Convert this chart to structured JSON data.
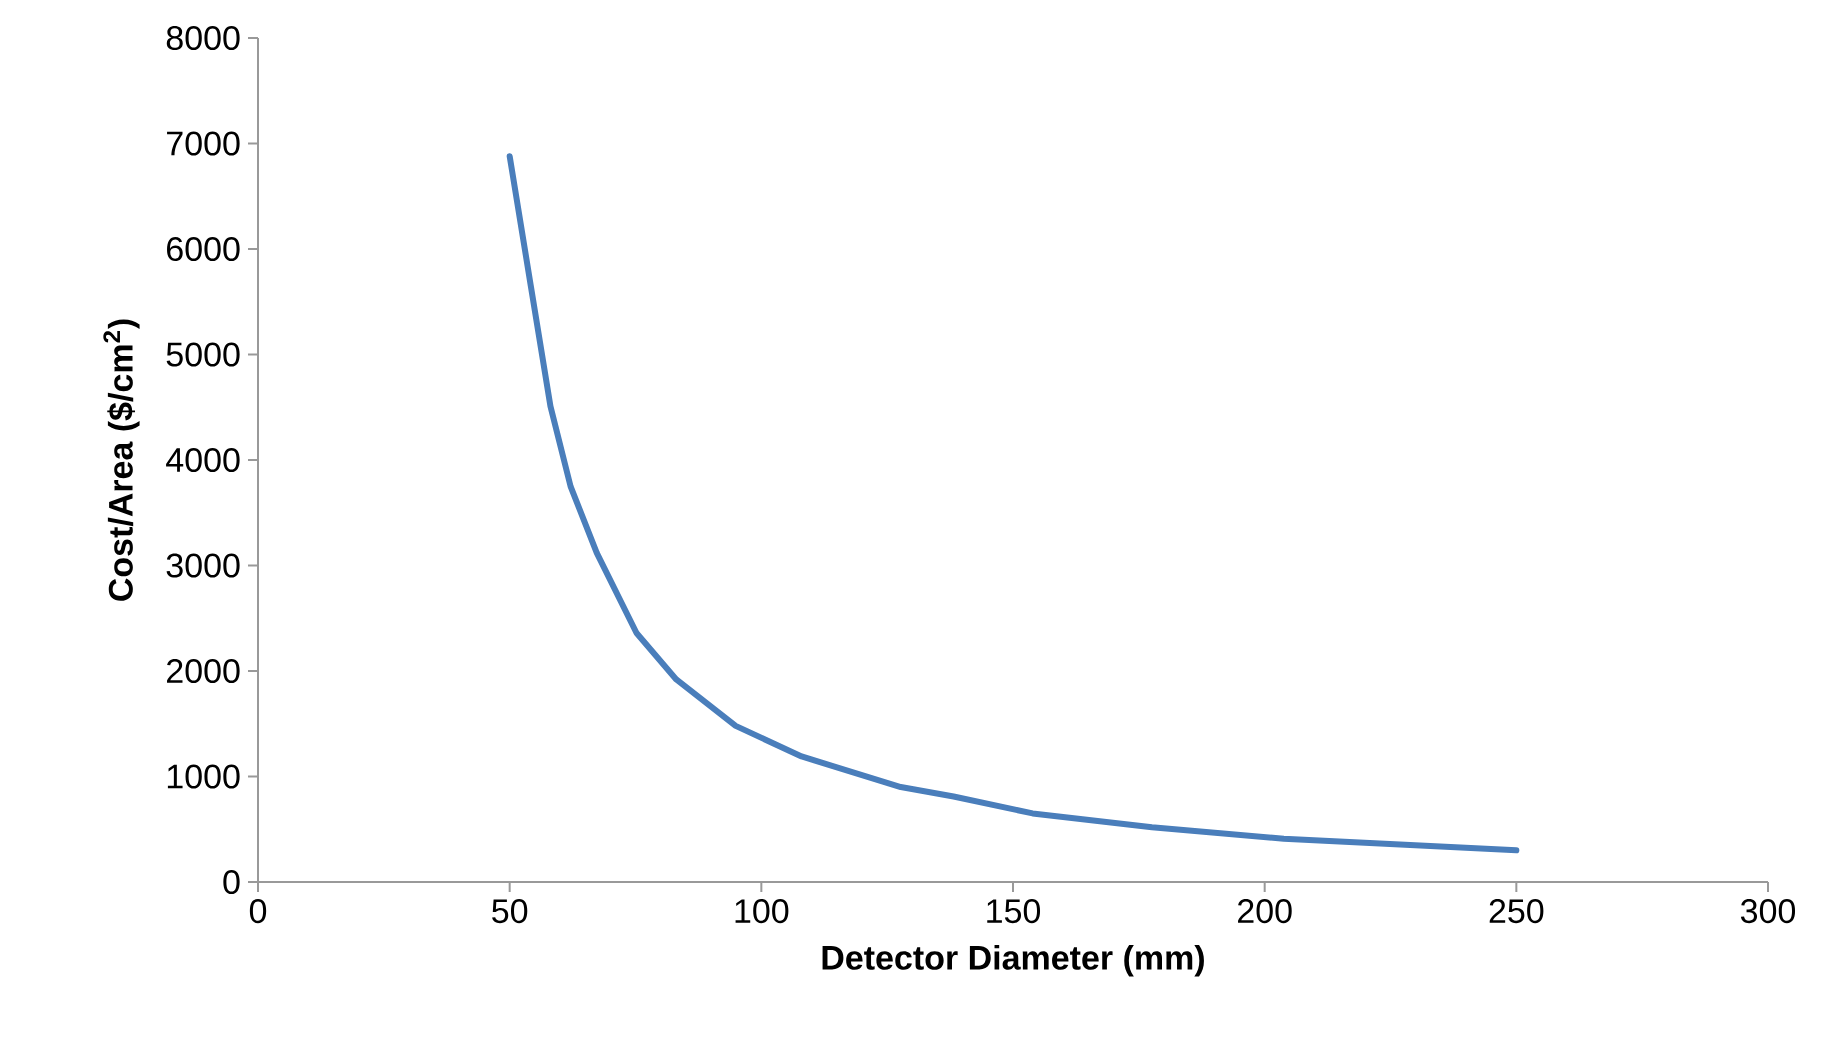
{
  "chart_data": {
    "type": "line",
    "xlabel": "Detector Diameter (mm)",
    "ylabel": "Cost/Area ($/cm$^{2}$)",
    "series": [
      {
        "color": "#4a7ebb",
        "x": [
          50,
          54.2,
          58.1,
          62.1,
          67.3,
          75.2,
          83.1,
          94.9,
          108,
          127.7,
          138.2,
          153.9,
          177.6,
          203.8,
          250
        ],
        "values": [
          6880,
          5650,
          4510,
          3750,
          3120,
          2360,
          1920,
          1480,
          1190,
          900,
          810,
          650,
          520,
          410,
          300
        ]
      }
    ],
    "xlim": [
      0,
      300
    ],
    "xticks": [
      0,
      50,
      100,
      150,
      200,
      250,
      300
    ],
    "ylim": [
      0,
      8000
    ],
    "yticks": [
      0,
      1000,
      2000,
      3000,
      4000,
      5000,
      6000,
      7000,
      8000
    ],
    "grid": false,
    "marker": "none",
    "line_style": "solid"
  }
}
